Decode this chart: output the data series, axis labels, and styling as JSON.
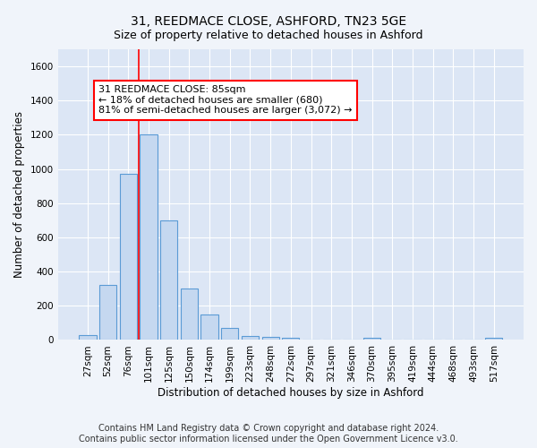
{
  "title": "31, REEDMACE CLOSE, ASHFORD, TN23 5GE",
  "subtitle": "Size of property relative to detached houses in Ashford",
  "xlabel": "Distribution of detached houses by size in Ashford",
  "ylabel": "Number of detached properties",
  "footer_line1": "Contains HM Land Registry data © Crown copyright and database right 2024.",
  "footer_line2": "Contains public sector information licensed under the Open Government Licence v3.0.",
  "bar_labels": [
    "27sqm",
    "52sqm",
    "76sqm",
    "101sqm",
    "125sqm",
    "150sqm",
    "174sqm",
    "199sqm",
    "223sqm",
    "248sqm",
    "272sqm",
    "297sqm",
    "321sqm",
    "346sqm",
    "370sqm",
    "395sqm",
    "419sqm",
    "444sqm",
    "468sqm",
    "493sqm",
    "517sqm"
  ],
  "bar_values": [
    30,
    320,
    970,
    1200,
    700,
    300,
    150,
    70,
    25,
    20,
    15,
    0,
    0,
    0,
    15,
    0,
    0,
    0,
    0,
    0,
    15
  ],
  "bar_color": "#c5d8f0",
  "bar_edge_color": "#5b9bd5",
  "property_line_x": 2.5,
  "annotation_text_line1": "31 REEDMACE CLOSE: 85sqm",
  "annotation_text_line2": "← 18% of detached houses are smaller (680)",
  "annotation_text_line3": "81% of semi-detached houses are larger (3,072) →",
  "ylim": [
    0,
    1700
  ],
  "yticks": [
    0,
    200,
    400,
    600,
    800,
    1000,
    1200,
    1400,
    1600
  ],
  "background_color": "#f0f4fa",
  "plot_bg_color": "#dce6f5",
  "grid_color": "#ffffff",
  "title_fontsize": 10,
  "subtitle_fontsize": 9,
  "axis_label_fontsize": 8.5,
  "tick_fontsize": 7.5,
  "footer_fontsize": 7,
  "annotation_fontsize": 8
}
